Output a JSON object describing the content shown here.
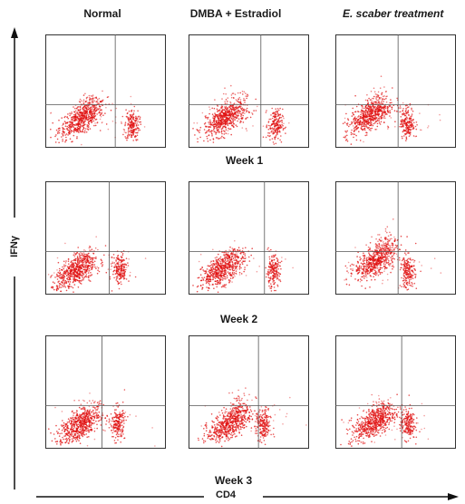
{
  "columns": [
    "Normal",
    "DMBA + Estradiol",
    "E. scaber treatment"
  ],
  "rows": [
    "Week 1",
    "Week 2",
    "Week 3"
  ],
  "axes": {
    "x_title": "CD4",
    "y_title": "IFNγ"
  },
  "colors": {
    "dots": "#e01010",
    "gate": "#555555",
    "frame": "#333333"
  },
  "chart_data": {
    "type": "scatter",
    "grid": "3x3 flow cytometry dot plots with quadrant gates",
    "xlabel": "CD4",
    "ylabel": "IFNγ",
    "panels": [
      {
        "row": "Week 1",
        "column": "Normal",
        "main_cluster": [
          0.3,
          0.25
        ],
        "cd4_cluster": [
          0.72,
          0.2
        ],
        "gate": [
          0.58,
          0.38
        ],
        "upper_spread": 0.15
      },
      {
        "row": "Week 1",
        "column": "DMBA + Estradiol",
        "main_cluster": [
          0.3,
          0.25
        ],
        "cd4_cluster": [
          0.72,
          0.2
        ],
        "gate": [
          0.6,
          0.38
        ],
        "upper_spread": 0.2
      },
      {
        "row": "Week 1",
        "column": "E. scaber treatment",
        "main_cluster": [
          0.28,
          0.28
        ],
        "cd4_cluster": [
          0.6,
          0.22
        ],
        "gate": [
          0.52,
          0.38
        ],
        "upper_spread": 0.18
      },
      {
        "row": "Week 2",
        "column": "Normal",
        "main_cluster": [
          0.25,
          0.2
        ],
        "cd4_cluster": [
          0.62,
          0.22
        ],
        "gate": [
          0.53,
          0.38
        ],
        "upper_spread": 0.1
      },
      {
        "row": "Week 2",
        "column": "DMBA + Estradiol",
        "main_cluster": [
          0.28,
          0.22
        ],
        "cd4_cluster": [
          0.7,
          0.2
        ],
        "gate": [
          0.63,
          0.38
        ],
        "upper_spread": 0.12
      },
      {
        "row": "Week 2",
        "column": "E. scaber treatment",
        "main_cluster": [
          0.34,
          0.3
        ],
        "cd4_cluster": [
          0.6,
          0.2
        ],
        "gate": [
          0.52,
          0.38
        ],
        "upper_spread": 0.2
      },
      {
        "row": "Week 3",
        "column": "Normal",
        "main_cluster": [
          0.28,
          0.2
        ],
        "cd4_cluster": [
          0.6,
          0.22
        ],
        "gate": [
          0.47,
          0.38
        ],
        "upper_spread": 0.12
      },
      {
        "row": "Week 3",
        "column": "DMBA + Estradiol",
        "main_cluster": [
          0.34,
          0.22
        ],
        "cd4_cluster": [
          0.62,
          0.2
        ],
        "gate": [
          0.58,
          0.38
        ],
        "upper_spread": 0.25
      },
      {
        "row": "Week 3",
        "column": "E. scaber treatment",
        "main_cluster": [
          0.32,
          0.23
        ],
        "cd4_cluster": [
          0.6,
          0.22
        ],
        "gate": [
          0.55,
          0.38
        ],
        "upper_spread": 0.12
      }
    ]
  }
}
